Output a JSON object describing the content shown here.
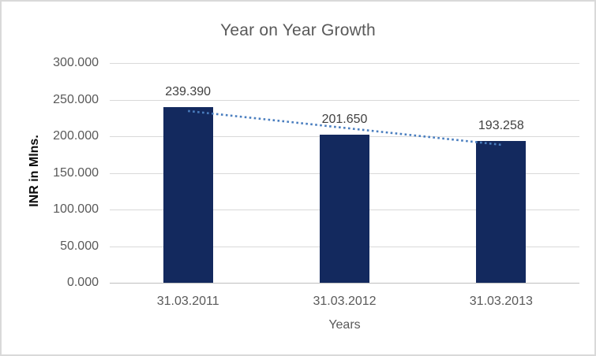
{
  "chart_data": {
    "type": "bar",
    "title": "Year on Year Growth",
    "xlabel": "Years",
    "ylabel": "INR in Mlns.",
    "categories": [
      "31.03.2011",
      "31.03.2012",
      "31.03.2013"
    ],
    "values": [
      239.39,
      201.65,
      193.258
    ],
    "data_labels": [
      "239.390",
      "201.650",
      "193.258"
    ],
    "ylim": [
      0,
      300
    ],
    "ytick_step": 50,
    "ytick_labels_top_to_bottom": [
      "300.000",
      "250.000",
      "200.000",
      "150.000",
      "100.000",
      "50.000",
      "0.000"
    ],
    "grid": true,
    "legend_position": "none",
    "trendline": {
      "type": "linear",
      "style": "dotted"
    },
    "colors": {
      "bar": "#13295E",
      "trendline": "#4A7EBF",
      "gridline": "#D9D9D9",
      "axis_line": "#BFBFBF",
      "tick_text": "#595959",
      "data_label_text": "#404040",
      "title_text": "#595959",
      "axis_title_text": "#0A0A0A",
      "frame_border": "#D9D9D9",
      "background": "#FFFFFF"
    }
  }
}
